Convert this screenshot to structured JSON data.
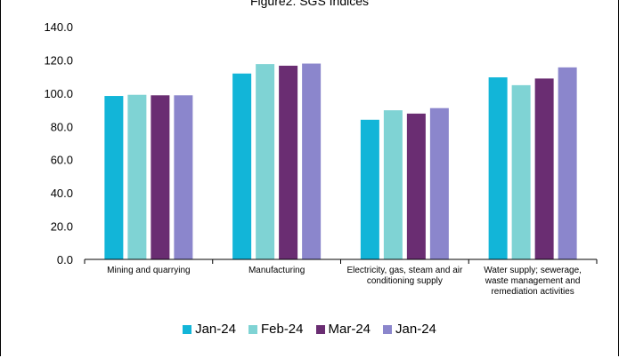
{
  "chart_data": {
    "type": "bar",
    "title": "Figure2: SGS Indices",
    "categories": [
      [
        "Mining and quarrying"
      ],
      [
        "Manufacturing"
      ],
      [
        "Electricity, gas, steam and air",
        "conditioning supply"
      ],
      [
        "Water supply; sewerage,",
        "waste management and",
        "remediation activities"
      ]
    ],
    "series": [
      {
        "name": "Jan-24",
        "color": "#12b5d8",
        "values": [
          98.3,
          111.8,
          84.0,
          109.5
        ]
      },
      {
        "name": "Feb-24",
        "color": "#7fd3d4",
        "values": [
          99.0,
          117.5,
          89.7,
          104.8
        ]
      },
      {
        "name": "Mar-24",
        "color": "#6a2d72",
        "values": [
          98.7,
          116.5,
          87.7,
          108.8
        ]
      },
      {
        "name": "Jan-24",
        "color": "#8b86cc",
        "values": [
          98.7,
          117.8,
          91.0,
          115.5
        ]
      }
    ],
    "yticks": [
      "0.0",
      "20.0",
      "40.0",
      "60.0",
      "80.0",
      "100.0",
      "120.0",
      "140.0"
    ],
    "ylim": [
      0,
      140
    ],
    "grid": false,
    "legend": "bottom"
  }
}
